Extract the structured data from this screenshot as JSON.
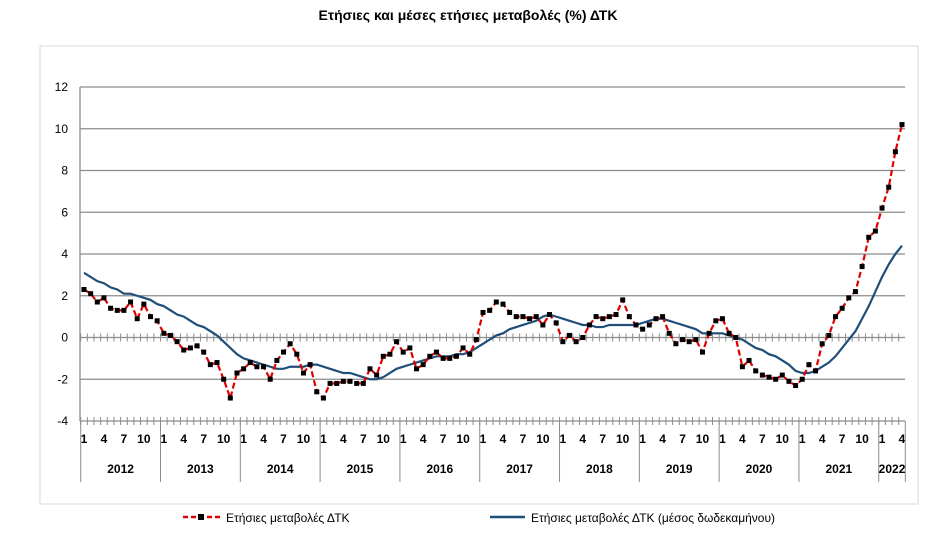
{
  "chart_data": {
    "type": "line",
    "title": "Ετήσιες και μέσες ετήσιες μεταβολές (%) ΔΤΚ",
    "xlabel": "",
    "ylabel": "",
    "ylim": [
      -4,
      12
    ],
    "yticks": [
      -4,
      -2,
      0,
      2,
      4,
      6,
      8,
      10,
      12
    ],
    "grid": true,
    "legend_position": "bottom",
    "month_ticks": [
      "1",
      "4",
      "7",
      "10"
    ],
    "years": [
      "2012",
      "2013",
      "2014",
      "2015",
      "2016",
      "2017",
      "2018",
      "2019",
      "2020",
      "2021",
      "2022"
    ],
    "x_start": "2012-01",
    "x_end": "2022-04",
    "series": [
      {
        "name": "Ετήσιες μεταβολές ΔΤΚ",
        "color": "#e00000",
        "style": "dashed-markers",
        "values": [
          2.3,
          2.1,
          1.7,
          1.9,
          1.4,
          1.3,
          1.3,
          1.7,
          0.9,
          1.6,
          1.0,
          0.8,
          0.2,
          0.1,
          -0.2,
          -0.6,
          -0.5,
          -0.4,
          -0.7,
          -1.3,
          -1.2,
          -2.0,
          -2.9,
          -1.7,
          -1.5,
          -1.2,
          -1.4,
          -1.4,
          -2.0,
          -1.1,
          -0.7,
          -0.3,
          -0.8,
          -1.7,
          -1.3,
          -2.6,
          -2.9,
          -2.2,
          -2.2,
          -2.1,
          -2.1,
          -2.2,
          -2.2,
          -1.5,
          -1.8,
          -0.9,
          -0.8,
          -0.2,
          -0.7,
          -0.5,
          -1.5,
          -1.3,
          -0.9,
          -0.7,
          -1.0,
          -1.0,
          -0.9,
          -0.5,
          -0.8,
          -0.1,
          1.2,
          1.3,
          1.7,
          1.6,
          1.2,
          1.0,
          1.0,
          0.9,
          1.0,
          0.6,
          1.1,
          0.7,
          -0.2,
          0.1,
          -0.2,
          0.0,
          0.6,
          1.0,
          0.9,
          1.0,
          1.1,
          1.8,
          1.0,
          0.6,
          0.4,
          0.6,
          0.9,
          1.0,
          0.2,
          -0.3,
          -0.1,
          -0.2,
          -0.1,
          -0.7,
          0.2,
          0.8,
          0.9,
          0.2,
          0.0,
          -1.4,
          -1.1,
          -1.6,
          -1.8,
          -1.9,
          -2.0,
          -1.8,
          -2.1,
          -2.3,
          -2.0,
          -1.3,
          -1.6,
          -0.3,
          0.1,
          1.0,
          1.4,
          1.9,
          2.2,
          3.4,
          4.8,
          5.1,
          6.2,
          7.2,
          8.9,
          10.2
        ]
      },
      {
        "name": "Ετήσιες μεταβολές ΔΤΚ (μέσος δωδεκαμήνου)",
        "color": "#1f4e79",
        "style": "solid",
        "values": [
          3.1,
          2.9,
          2.7,
          2.6,
          2.4,
          2.3,
          2.1,
          2.1,
          2.0,
          1.9,
          1.8,
          1.6,
          1.5,
          1.3,
          1.1,
          1.0,
          0.8,
          0.6,
          0.5,
          0.3,
          0.1,
          -0.2,
          -0.5,
          -0.8,
          -1.0,
          -1.1,
          -1.2,
          -1.3,
          -1.4,
          -1.5,
          -1.5,
          -1.4,
          -1.4,
          -1.4,
          -1.3,
          -1.3,
          -1.4,
          -1.5,
          -1.6,
          -1.7,
          -1.7,
          -1.8,
          -1.9,
          -2.0,
          -2.0,
          -1.9,
          -1.7,
          -1.5,
          -1.4,
          -1.3,
          -1.2,
          -1.1,
          -1.0,
          -0.9,
          -0.9,
          -0.9,
          -0.8,
          -0.8,
          -0.7,
          -0.5,
          -0.3,
          -0.1,
          0.1,
          0.2,
          0.4,
          0.5,
          0.6,
          0.7,
          0.8,
          1.0,
          1.1,
          1.0,
          0.9,
          0.8,
          0.7,
          0.6,
          0.6,
          0.5,
          0.5,
          0.6,
          0.6,
          0.6,
          0.6,
          0.6,
          0.7,
          0.8,
          0.9,
          0.9,
          0.8,
          0.7,
          0.6,
          0.5,
          0.4,
          0.2,
          0.2,
          0.2,
          0.2,
          0.1,
          0.0,
          -0.1,
          -0.3,
          -0.5,
          -0.6,
          -0.8,
          -0.9,
          -1.1,
          -1.3,
          -1.6,
          -1.7,
          -1.7,
          -1.6,
          -1.4,
          -1.2,
          -0.9,
          -0.5,
          -0.1,
          0.3,
          0.9,
          1.5,
          2.2,
          2.9,
          3.5,
          4.0,
          4.4
        ]
      }
    ]
  }
}
